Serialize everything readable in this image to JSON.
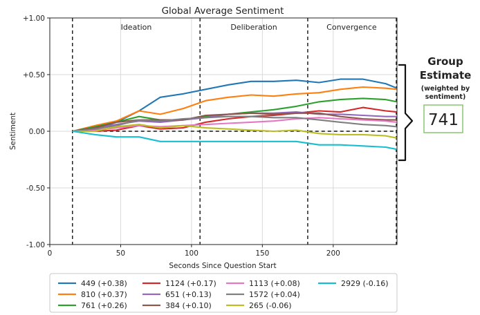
{
  "chart_data": {
    "type": "line",
    "title": "Global Average Sentiment",
    "xlabel": "Seconds Since Question Start",
    "ylabel": "Sentiment",
    "xlim": [
      0,
      245
    ],
    "ylim": [
      -1.0,
      1.0
    ],
    "xticks": [
      0,
      50,
      100,
      150,
      200
    ],
    "xtick_labels": [
      "0",
      "50",
      "100",
      "150",
      "200"
    ],
    "yticks": [
      -1.0,
      -0.5,
      0.0,
      0.5,
      1.0
    ],
    "ytick_labels": [
      "-1.00",
      "-0.50",
      "0.00",
      "+0.50",
      "+1.00"
    ],
    "grid": true,
    "legend_position": "bottom",
    "phase_boundaries": [
      16,
      106,
      182,
      245
    ],
    "phases": [
      {
        "label": "Ideation",
        "x": 61
      },
      {
        "label": "Deliberation",
        "x": 144
      },
      {
        "label": "Convergence",
        "x": 213
      }
    ],
    "x": [
      16,
      32,
      47,
      63,
      78,
      94,
      110,
      126,
      142,
      158,
      174,
      190,
      205,
      221,
      237,
      245
    ],
    "series": [
      {
        "name": "449 (+0.38)",
        "color": "#1f77b4",
        "values": [
          0.0,
          0.02,
          0.08,
          0.18,
          0.3,
          0.33,
          0.37,
          0.41,
          0.44,
          0.44,
          0.45,
          0.43,
          0.46,
          0.46,
          0.42,
          0.38
        ]
      },
      {
        "name": "810 (+0.37)",
        "color": "#ff7f0e",
        "values": [
          0.0,
          0.05,
          0.09,
          0.18,
          0.15,
          0.2,
          0.27,
          0.3,
          0.32,
          0.31,
          0.33,
          0.34,
          0.37,
          0.39,
          0.38,
          0.37
        ]
      },
      {
        "name": "761 (+0.26)",
        "color": "#2ca02c",
        "values": [
          0.0,
          0.04,
          0.08,
          0.13,
          0.1,
          0.1,
          0.13,
          0.15,
          0.17,
          0.19,
          0.22,
          0.26,
          0.28,
          0.29,
          0.28,
          0.26
        ]
      },
      {
        "name": "1124 (+0.17)",
        "color": "#d62728",
        "values": [
          0.0,
          0.0,
          0.01,
          0.05,
          0.02,
          0.03,
          0.08,
          0.11,
          0.13,
          0.14,
          0.16,
          0.18,
          0.17,
          0.21,
          0.18,
          0.17
        ]
      },
      {
        "name": "651 (+0.13)",
        "color": "#9467bd",
        "values": [
          0.0,
          0.03,
          0.06,
          0.09,
          0.08,
          0.1,
          0.12,
          0.15,
          0.16,
          0.16,
          0.17,
          0.15,
          0.15,
          0.14,
          0.13,
          0.13
        ]
      },
      {
        "name": "384 (+0.10)",
        "color": "#8c564b",
        "values": [
          0.0,
          0.03,
          0.08,
          0.1,
          0.1,
          0.1,
          0.14,
          0.15,
          0.16,
          0.15,
          0.16,
          0.16,
          0.13,
          0.11,
          0.1,
          0.1
        ]
      },
      {
        "name": "1113 (+0.08)",
        "color": "#e377c2",
        "values": [
          0.0,
          0.01,
          0.03,
          0.05,
          0.04,
          0.05,
          0.06,
          0.07,
          0.08,
          0.09,
          0.11,
          0.12,
          0.11,
          0.1,
          0.09,
          0.08
        ]
      },
      {
        "name": "1572 (+0.04)",
        "color": "#7f7f7f",
        "values": [
          0.0,
          0.02,
          0.05,
          0.1,
          0.09,
          0.11,
          0.12,
          0.13,
          0.13,
          0.12,
          0.12,
          0.1,
          0.08,
          0.06,
          0.05,
          0.04
        ]
      },
      {
        "name": "265 (-0.06)",
        "color": "#bcbd22",
        "values": [
          0.0,
          0.0,
          0.04,
          0.06,
          0.03,
          0.05,
          0.03,
          0.02,
          0.01,
          0.0,
          0.01,
          -0.02,
          -0.03,
          -0.03,
          -0.04,
          -0.06
        ]
      },
      {
        "name": "2929 (-0.16)",
        "color": "#17becf",
        "values": [
          0.0,
          -0.03,
          -0.05,
          -0.05,
          -0.09,
          -0.09,
          -0.09,
          -0.09,
          -0.09,
          -0.09,
          -0.09,
          -0.12,
          -0.12,
          -0.13,
          -0.14,
          -0.16
        ]
      }
    ]
  },
  "estimate": {
    "title_line1": "Group",
    "title_line2": "Estimate",
    "note_line1": "(weighted by",
    "note_line2": "sentiment)",
    "value": "741",
    "accent": "#8fc97a"
  }
}
